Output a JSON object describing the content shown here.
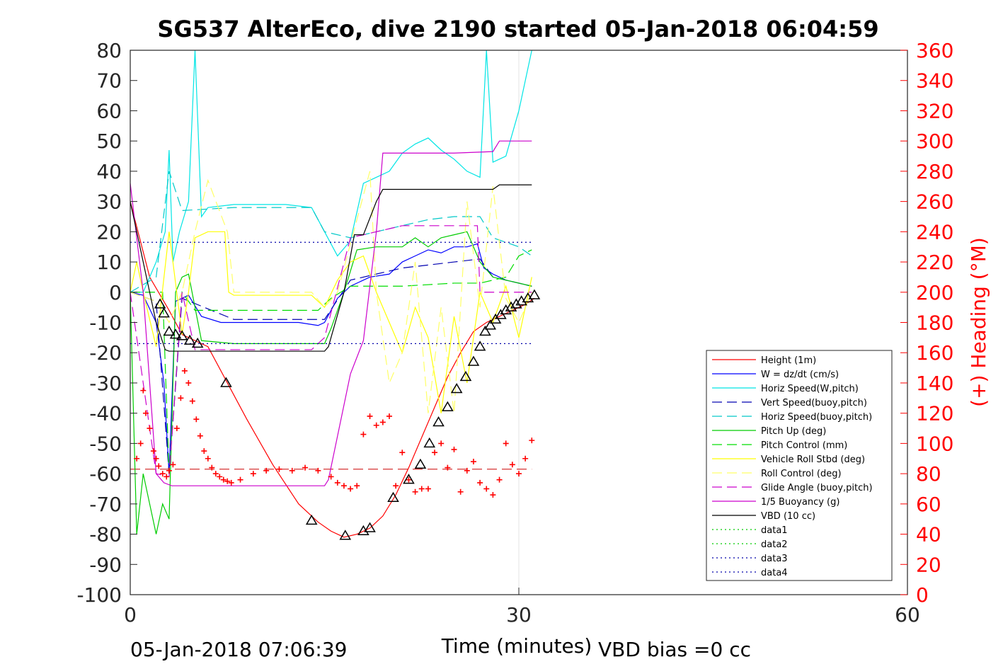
{
  "chart_data": {
    "type": "line",
    "title": "SG537 AlterEco, dive 2190 started 05-Jan-2018 06:04:59",
    "xlabel": "Time (minutes)",
    "ylabel_right": "(+) Heading (°M)",
    "xlim": [
      0,
      60
    ],
    "ylim": [
      -100,
      80
    ],
    "ylim_right": [
      0,
      360
    ],
    "x_ticks": [
      "0",
      "30",
      "60"
    ],
    "y_ticks": [
      "80",
      "70",
      "60",
      "50",
      "40",
      "30",
      "20",
      "10",
      "0",
      "-10",
      "-20",
      "-30",
      "-40",
      "-50",
      "-60",
      "-70",
      "-80",
      "-90",
      "-100"
    ],
    "y_ticks_right": [
      "360",
      "340",
      "320",
      "300",
      "280",
      "260",
      "240",
      "220",
      "200",
      "180",
      "160",
      "140",
      "120",
      "100",
      "80",
      "60",
      "40",
      "20",
      "0"
    ],
    "footer_left": "05-Jan-2018 07:06:39",
    "footer_right": "VBD bias =0 cc",
    "legend_position": "lower-right",
    "grid_x_at": [
      30
    ],
    "series": [
      {
        "name": "Height (1m)",
        "color": "#ff0000",
        "style": "solid",
        "x": [
          0,
          1.5,
          3,
          4,
          5,
          6,
          7.5,
          9,
          11,
          13,
          14.5,
          15.5,
          16.5,
          17.5,
          18.5,
          19.5,
          20.5,
          21.5,
          22.5,
          23.5,
          24.5,
          25.5,
          26.5,
          27.5,
          28.5,
          29.5,
          30.5,
          31.2
        ],
        "y": [
          30,
          5,
          -6,
          -14,
          -16,
          -18,
          -30,
          -42,
          -57,
          -70,
          -76,
          -79,
          -81,
          -80,
          -78,
          -74,
          -67,
          -58,
          -48,
          -38,
          -28,
          -20,
          -13,
          -10,
          -8,
          -6,
          -4,
          -2
        ]
      },
      {
        "name": "W = dz/dt (cm/s)",
        "color": "#0000ff",
        "style": "solid",
        "x": [
          0,
          1,
          2,
          2.6,
          3,
          3.5,
          4.5,
          5.5,
          7,
          9,
          11,
          13,
          14.5,
          15,
          16,
          17,
          18.5,
          20,
          21,
          22,
          23,
          24,
          25,
          26,
          26.8,
          27.3,
          28,
          29,
          30,
          31
        ],
        "y": [
          0,
          -1,
          -10,
          -30,
          -60,
          -3,
          -1,
          -8,
          -10,
          -10,
          -10,
          -10,
          -11,
          -10,
          -2,
          2,
          5,
          6,
          10,
          12,
          14,
          13,
          15,
          15,
          16,
          8,
          6,
          4,
          3,
          2
        ]
      },
      {
        "name": "Horiz Speed(W,pitch)",
        "color": "#00e5e5",
        "style": "solid",
        "x": [
          0,
          1,
          2,
          2.7,
          3,
          3.3,
          3.8,
          4.5,
          5,
          5.5,
          6,
          8,
          10,
          12,
          14,
          15,
          16,
          17,
          18,
          19,
          20,
          21,
          22,
          23,
          24,
          25,
          26,
          27,
          27.5,
          28,
          29,
          30,
          31
        ],
        "y": [
          0,
          0,
          10,
          20,
          47,
          10,
          20,
          30,
          80,
          25,
          28,
          29,
          29,
          29,
          28,
          20,
          12,
          17,
          36,
          38,
          40,
          46,
          49,
          51,
          47,
          44,
          40,
          38,
          80,
          43,
          45,
          60,
          80
        ]
      },
      {
        "name": "Vert Speed(buoy,pitch)",
        "color": "#0000b0",
        "style": "dashed",
        "x": [
          0,
          2,
          3,
          4,
          8,
          14,
          15,
          17,
          19,
          21,
          23,
          25,
          27,
          28,
          30,
          31
        ],
        "y": [
          0,
          -3,
          -60,
          -2,
          -9,
          -9,
          -9,
          4,
          6,
          8,
          9,
          10,
          11,
          5,
          3,
          2
        ]
      },
      {
        "name": "Horiz Speed(buoy,pitch)",
        "color": "#00c8c8",
        "style": "dashed",
        "x": [
          0,
          2,
          3,
          4,
          8,
          14,
          15,
          17,
          19,
          21,
          23,
          25,
          27,
          28,
          30,
          31
        ],
        "y": [
          0,
          5,
          40,
          27,
          28,
          28,
          20,
          18,
          20,
          22,
          24,
          25,
          25,
          18,
          15,
          12
        ]
      },
      {
        "name": "Pitch Up (deg)",
        "color": "#00cc00",
        "style": "solid",
        "x": [
          0,
          0.5,
          1,
          2,
          2.5,
          3,
          3.5,
          4,
          4.5,
          5.5,
          8,
          12,
          15,
          15.5,
          16.5,
          17.5,
          19,
          21,
          22,
          23,
          24,
          25,
          26,
          27,
          28,
          29,
          30,
          31
        ],
        "y": [
          0,
          -80,
          -60,
          -80,
          -70,
          -75,
          0,
          5,
          6,
          -16,
          -17,
          -17,
          -17,
          -12,
          0,
          14,
          15,
          15,
          18,
          15,
          18,
          19,
          20,
          10,
          5,
          4,
          3,
          2
        ]
      },
      {
        "name": "Pitch Control (mm)",
        "color": "#00dd00",
        "style": "dashed",
        "x": [
          0,
          2.5,
          3,
          4,
          5,
          14.5,
          15.5,
          17,
          19,
          21,
          25,
          27,
          29,
          30,
          31
        ],
        "y": [
          0,
          0,
          -60,
          0,
          -6,
          -6,
          -2,
          2,
          2,
          2,
          3,
          3,
          5,
          12,
          14
        ]
      },
      {
        "name": "Vehicle Roll Stbd (deg)",
        "color": "#ffff00",
        "style": "solid",
        "x": [
          0,
          0.5,
          1,
          2,
          3,
          4,
          4.5,
          5,
          6,
          7.3,
          7.6,
          8,
          10,
          14,
          15,
          16,
          17,
          18,
          19,
          20,
          21,
          22,
          23,
          24,
          25,
          26,
          27,
          28,
          29,
          30,
          31
        ],
        "y": [
          0,
          10,
          0,
          -18,
          20,
          -14,
          0,
          18,
          20,
          20,
          0,
          -1,
          -1,
          -1,
          -5,
          4,
          10,
          12,
          0,
          -10,
          -20,
          -5,
          -15,
          -40,
          -8,
          -30,
          0,
          -10,
          2,
          -15,
          5
        ]
      },
      {
        "name": "Roll Control (deg)",
        "color": "#ffff66",
        "style": "dashed",
        "x": [
          0,
          2,
          3,
          4,
          5,
          6,
          7.5,
          8,
          14,
          15,
          16,
          18.5,
          19,
          20,
          21,
          22,
          23,
          24,
          25,
          26,
          27,
          28,
          29,
          30,
          31
        ],
        "y": [
          0,
          -3,
          -10,
          0,
          20,
          37,
          20,
          0,
          0,
          -5,
          0,
          40,
          0,
          -30,
          -20,
          10,
          -40,
          -5,
          -40,
          30,
          -5,
          35,
          -2,
          -10,
          0
        ]
      },
      {
        "name": "Glide Angle (buoy,pitch)",
        "color": "#cc00cc",
        "style": "dashed",
        "x": [
          0,
          1,
          2,
          3,
          4,
          5,
          8,
          14,
          15,
          17,
          19,
          21,
          23,
          25,
          26.8,
          27,
          28,
          30,
          31
        ],
        "y": [
          0,
          -30,
          -60,
          -61,
          0,
          -19,
          -19,
          -19,
          -15,
          18,
          20,
          22,
          22,
          22,
          22,
          0,
          0,
          0,
          0
        ]
      },
      {
        "name": "1/5 Buoyancy (g)",
        "color": "#cc00cc",
        "style": "solid",
        "x": [
          0,
          1,
          2,
          2.6,
          3.2,
          5,
          10,
          15,
          15.3,
          17,
          18,
          19,
          19.5,
          22,
          25,
          28,
          28.5,
          31
        ],
        "y": [
          36,
          0,
          -60,
          -63,
          -64,
          -64,
          -64,
          -64,
          -62,
          -27,
          -16,
          20,
          46,
          46,
          46,
          46.5,
          50,
          50
        ]
      },
      {
        "name": "VBD (10 cc)",
        "color": "#000000",
        "style": "solid",
        "x": [
          0,
          1,
          2,
          2.7,
          3,
          6,
          10,
          15,
          15.3,
          16.5,
          17.3,
          18,
          19,
          19.5,
          20.5,
          22,
          25,
          28,
          28.5,
          31
        ],
        "y": [
          30,
          10,
          -10,
          -19,
          -19.5,
          -19.5,
          -19.5,
          -19.5,
          -18,
          0,
          19,
          19,
          30,
          34,
          34,
          34,
          34,
          34,
          35.5,
          35.5
        ]
      },
      {
        "name": "data1",
        "color": "#00cc00",
        "style": "dotted",
        "x": [],
        "y": []
      },
      {
        "name": "data2",
        "color": "#00cc00",
        "style": "dotted",
        "x": [],
        "y": []
      },
      {
        "name": "data3",
        "color": "#0000aa",
        "style": "dotted",
        "x": [
          0,
          31
        ],
        "y": [
          16.5,
          16.5
        ]
      },
      {
        "name": "data4",
        "color": "#0000aa",
        "style": "dotted",
        "x": [
          0,
          31
        ],
        "y": [
          -17,
          -17
        ]
      }
    ],
    "heading_mean": {
      "color": "#cc0000",
      "style": "dashed",
      "x": [
        0,
        31
      ],
      "heading": [
        83,
        83
      ]
    },
    "heading_points": {
      "color": "#ff0000",
      "x": [
        0.5,
        0.8,
        1.0,
        1.2,
        1.5,
        1.8,
        2.0,
        2.2,
        2.5,
        2.8,
        3.0,
        3.3,
        3.6,
        3.9,
        4.2,
        4.5,
        4.8,
        5.1,
        5.4,
        5.7,
        6.0,
        6.3,
        6.6,
        6.9,
        7.2,
        7.5,
        7.8,
        8.5,
        9.5,
        10.5,
        11.5,
        12.5,
        13.5,
        14.5,
        15.5,
        16.0,
        16.5,
        17.0,
        17.5,
        18.0,
        18.5,
        19.0,
        19.5,
        20.0,
        20.5,
        21.0,
        21.5,
        22.0,
        22.5,
        23.0,
        23.5,
        24.0,
        24.5,
        25.0,
        25.5,
        26.0,
        26.5,
        27.0,
        27.5,
        28.0,
        28.5,
        29.0,
        29.5,
        30.0,
        30.5,
        31.0
      ],
      "heading": [
        90,
        100,
        135,
        120,
        110,
        95,
        90,
        85,
        80,
        78,
        82,
        86,
        110,
        130,
        148,
        140,
        128,
        116,
        105,
        95,
        90,
        84,
        80,
        78,
        76,
        75,
        74,
        76,
        80,
        82,
        83,
        82,
        84,
        82,
        78,
        74,
        72,
        70,
        72,
        106,
        118,
        112,
        114,
        118,
        72,
        94,
        76,
        68,
        70,
        70,
        94,
        100,
        84,
        96,
        68,
        82,
        88,
        74,
        70,
        66,
        76,
        100,
        86,
        80,
        90,
        102
      ]
    },
    "triangle_markers": {
      "color": "#000000",
      "x": [
        2.3,
        2.6,
        3.0,
        3.5,
        4.0,
        4.6,
        5.2,
        7.4,
        14.0,
        16.6,
        18.0,
        18.5,
        20.3,
        21.5,
        22.4,
        23.1,
        23.8,
        24.5,
        25.2,
        25.9,
        26.5,
        27.0,
        27.4,
        27.8,
        28.2,
        28.6,
        29.0,
        29.4,
        29.8,
        30.2,
        30.7,
        31.2
      ],
      "y": [
        -4,
        -7,
        -13,
        -14,
        -14.5,
        -16,
        -17,
        -30,
        -75.5,
        -80.5,
        -79,
        -78,
        -68,
        -62,
        -57,
        -50,
        -43,
        -38,
        -32,
        -28,
        -23,
        -18,
        -13,
        -11,
        -9,
        -7.5,
        -6,
        -5,
        -4,
        -3,
        -2,
        -1
      ]
    }
  }
}
